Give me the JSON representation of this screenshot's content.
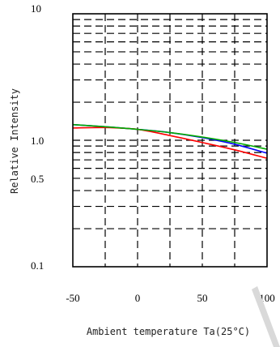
{
  "chart_data": {
    "type": "line",
    "xlabel": "Ambient temperature Ta(25°C)",
    "ylabel": "Relative Intensity",
    "xlim": [
      -50,
      100
    ],
    "ylim": [
      0.1,
      10
    ],
    "yscale": "log",
    "x_ticks": [
      "-50",
      "0",
      "50",
      "100"
    ],
    "y_ticks": [
      "10",
      "1.0",
      "0.5",
      "0.1"
    ],
    "y_tick_values": [
      10,
      1.0,
      0.5,
      0.1
    ],
    "grid": true,
    "series": [
      {
        "color": "#0000ff",
        "x": [
          -50,
          -25,
          0,
          25,
          50,
          75,
          100
        ],
        "y": [
          1.33,
          1.28,
          1.22,
          1.15,
          1.05,
          0.93,
          0.79
        ]
      },
      {
        "color": "#ff0000",
        "x": [
          -50,
          -25,
          0,
          25,
          50,
          75,
          100
        ],
        "y": [
          1.25,
          1.26,
          1.22,
          1.09,
          0.96,
          0.84,
          0.72
        ]
      },
      {
        "color": "#00aa00",
        "x": [
          -50,
          -25,
          0,
          25,
          50,
          75,
          100
        ],
        "y": [
          1.33,
          1.28,
          1.22,
          1.15,
          1.06,
          0.96,
          0.85
        ]
      }
    ]
  }
}
